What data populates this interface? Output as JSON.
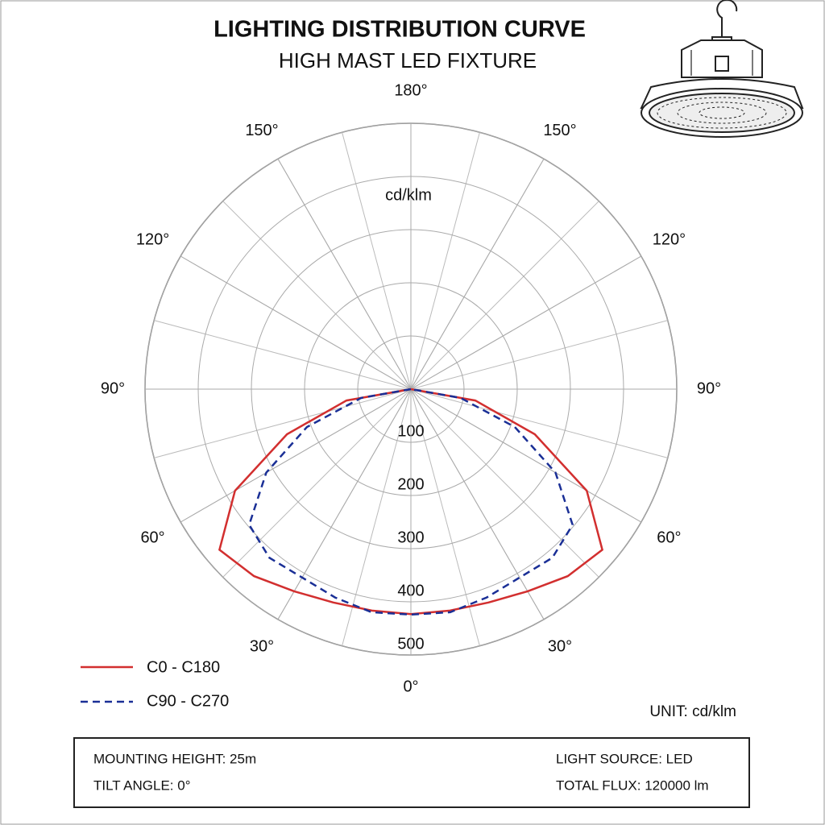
{
  "chart_data": {
    "type": "polar",
    "title": "LIGHTING DISTRIBUTION CURVE",
    "subtitle": "HIGH MAST LED FIXTURE",
    "radial_unit": "cd/klm",
    "rlim": [
      0,
      500
    ],
    "rticks": [
      100,
      200,
      300,
      400,
      500
    ],
    "angle_ticks": [
      {
        "value": 0,
        "label": "0°"
      },
      {
        "value": 30,
        "label": "30°"
      },
      {
        "value": 60,
        "label": "60°"
      },
      {
        "value": 90,
        "label": "90°"
      },
      {
        "value": 120,
        "label": "120°"
      },
      {
        "value": 150,
        "label": "150°"
      },
      {
        "value": 180,
        "label": "180°"
      },
      {
        "value": -30,
        "label": "30°"
      },
      {
        "value": -60,
        "label": "60°"
      },
      {
        "value": -90,
        "label": "90°"
      },
      {
        "value": -120,
        "label": "120°"
      },
      {
        "value": -150,
        "label": "150°"
      }
    ],
    "angles": [
      -90,
      -80,
      -70,
      -60,
      -50,
      -40,
      -30,
      -20,
      -10,
      0,
      10,
      20,
      30,
      40,
      50,
      60,
      70,
      80,
      90
    ],
    "grid": true,
    "series": [
      {
        "name": "C0 - C180",
        "color": "#d22f2f",
        "dash": false,
        "values": [
          0,
          123,
          248,
          382,
          470,
          459,
          439,
          427,
          423,
          423,
          423,
          427,
          439,
          459,
          470,
          382,
          248,
          123,
          0
        ]
      },
      {
        "name": "C90 - C270",
        "color": "#1a2f96",
        "dash": true,
        "values": [
          0,
          95,
          208,
          314,
          397,
          414,
          409,
          417,
          426,
          424,
          426,
          417,
          409,
          414,
          397,
          314,
          208,
          95,
          0
        ]
      }
    ]
  },
  "unit_note": "UNIT: cd/klm",
  "info": {
    "mounting_height": "MOUNTING  HEIGHT:  25m",
    "tilt_angle": "TILT ANGLE: 0°",
    "light_source": "LIGHT SOURCE:  LED",
    "total_flux": "TOTAL  FLUX:  120000  lm"
  }
}
